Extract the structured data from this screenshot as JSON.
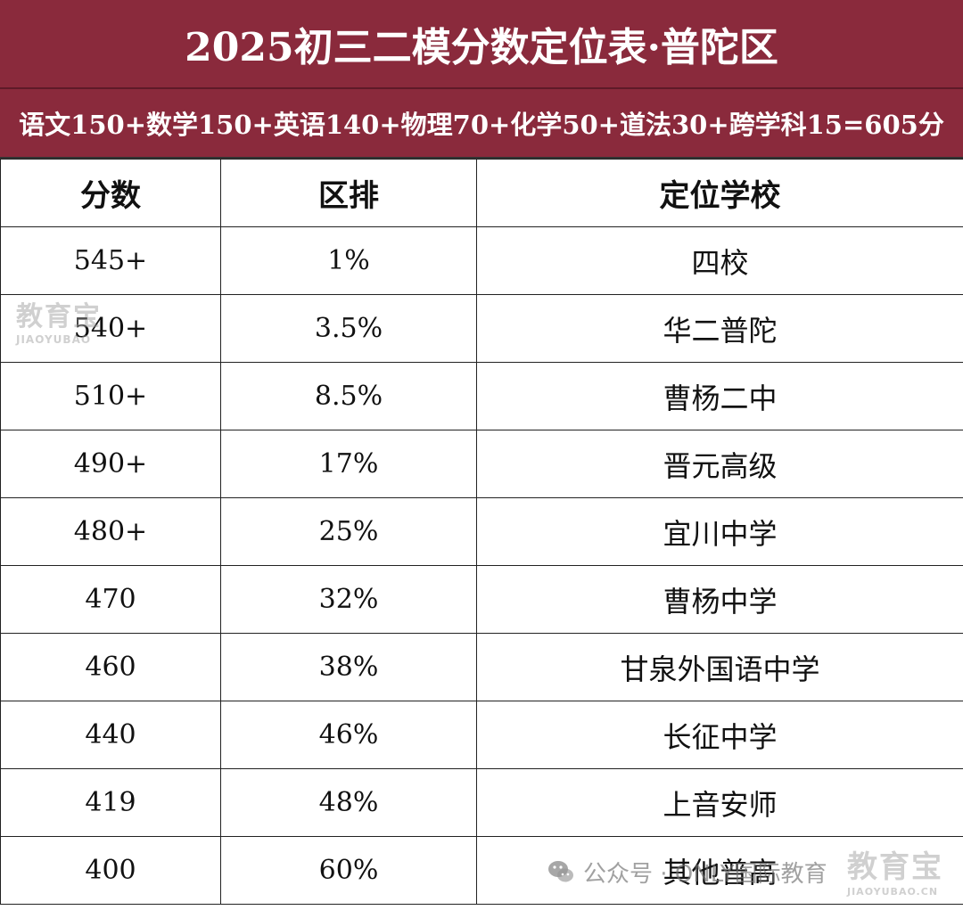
{
  "header": {
    "title": "2025初三二模分数定位表·普陀区",
    "formula": "语文150+数学150+英语140+物理70+化学50+道法30+跨学科15=605分"
  },
  "table": {
    "columns": [
      "分数",
      "区排",
      "定位学校"
    ],
    "rows": [
      {
        "score": "545+",
        "rank": "1%",
        "school": "四校"
      },
      {
        "score": "540+",
        "rank": "3.5%",
        "school": "华二普陀"
      },
      {
        "score": "510+",
        "rank": "8.5%",
        "school": "曹杨二中"
      },
      {
        "score": "490+",
        "rank": "17%",
        "school": "晋元高级"
      },
      {
        "score": "480+",
        "rank": "25%",
        "school": "宜川中学"
      },
      {
        "score": "470",
        "rank": "32%",
        "school": "曹杨中学"
      },
      {
        "score": "460",
        "rank": "38%",
        "school": "甘泉外国语中学"
      },
      {
        "score": "440",
        "rank": "46%",
        "school": "长征中学"
      },
      {
        "score": "419",
        "rank": "48%",
        "school": "上音安师"
      },
      {
        "score": "400",
        "rank": "60%",
        "school": "其他普高"
      }
    ]
  },
  "watermarks": {
    "left_cn": "教育宝",
    "left_en": "JIAOYUBAO",
    "bottom_text": "公众号 · ONLY国际教育",
    "right_cn": "教育宝",
    "right_en": "JIAOYUBAO.CN",
    "icon": "wechat-icon"
  },
  "colors": {
    "header_bg": "#8a2a3c",
    "header_text": "#ffffff",
    "grid_line": "#222222"
  }
}
